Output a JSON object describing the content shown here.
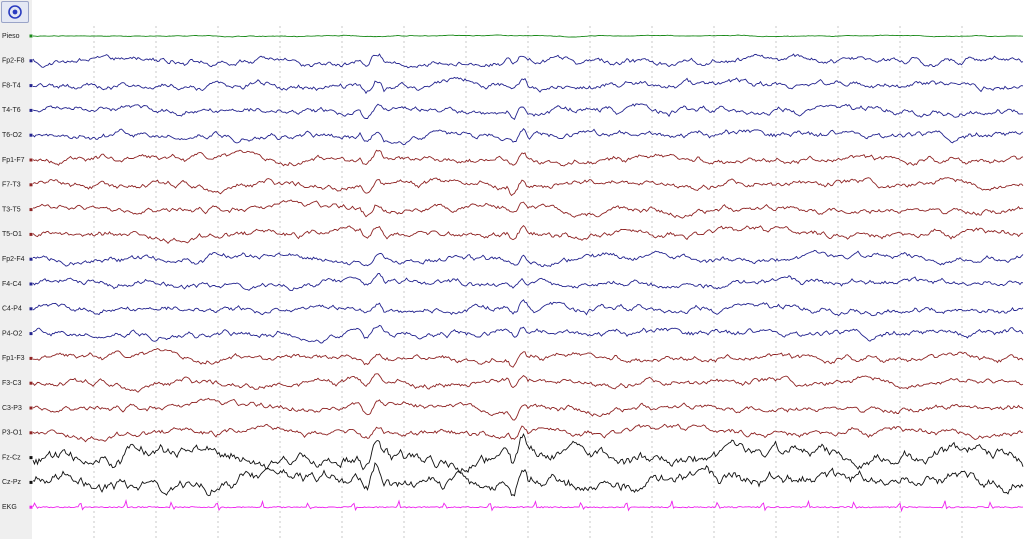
{
  "toolbar": {
    "button": "target"
  },
  "channels": [
    {
      "label": "Pieso",
      "color": "#1a8a1a"
    },
    {
      "label": "Fp2-F8",
      "color": "#24248f"
    },
    {
      "label": "F8-T4",
      "color": "#24248f"
    },
    {
      "label": "T4-T6",
      "color": "#24248f"
    },
    {
      "label": "T6-O2",
      "color": "#24248f"
    },
    {
      "label": "Fp1-F7",
      "color": "#8f2424"
    },
    {
      "label": "F7-T3",
      "color": "#8f2424"
    },
    {
      "label": "T3-T5",
      "color": "#8f2424"
    },
    {
      "label": "T5-O1",
      "color": "#8f2424"
    },
    {
      "label": "Fp2-F4",
      "color": "#24248f"
    },
    {
      "label": "F4-C4",
      "color": "#24248f"
    },
    {
      "label": "C4-P4",
      "color": "#24248f"
    },
    {
      "label": "P4-O2",
      "color": "#24248f"
    },
    {
      "label": "Fp1-F3",
      "color": "#8f2424"
    },
    {
      "label": "F3-C3",
      "color": "#8f2424"
    },
    {
      "label": "C3-P3",
      "color": "#8f2424"
    },
    {
      "label": "P3-O1",
      "color": "#8f2424"
    },
    {
      "label": "Fz-Cz",
      "color": "#111111"
    },
    {
      "label": "Cz-Pz",
      "color": "#111111"
    },
    {
      "label": "EKG",
      "color": "#ee22ee"
    }
  ]
}
